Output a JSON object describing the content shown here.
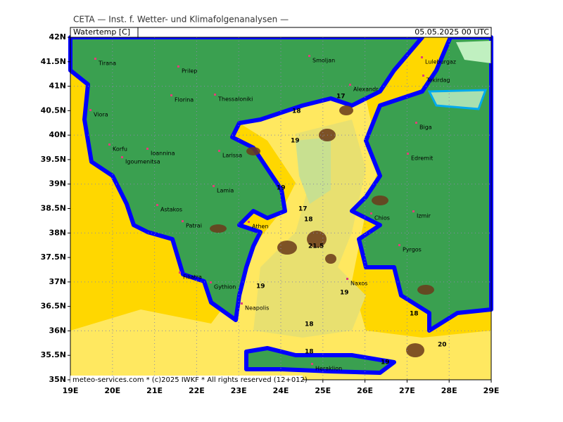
{
  "header": {
    "title": "CETA — Inst. f. Wetter- und Klimafolgenanalysen —",
    "parameter": "Watertemp [C]",
    "datetime": "05.05.2025 00 UTC"
  },
  "footer": "meteo-services.com * (c)2025 IWKF * All rights reserved (12+012)",
  "lon_ticks": [
    "19E",
    "20E",
    "21E",
    "22E",
    "23E",
    "24E",
    "25E",
    "26E",
    "27E",
    "28E",
    "29E"
  ],
  "lat_ticks": [
    "35N",
    "35.5N",
    "36N",
    "36.5N",
    "37N",
    "37.5N",
    "38N",
    "38.5N",
    "39N",
    "39.5N",
    "40N",
    "40.5N",
    "41N",
    "41.5N",
    "42N"
  ],
  "places": [
    "Tirana",
    "Prilep",
    "Smoljan",
    "Luleburgaz",
    "Tekirdag",
    "Florina",
    "Alexandr",
    "Thessaloniki",
    "Viora",
    "Biga",
    "Korfu",
    "Ioannina",
    "Larissa",
    "Igoumenitsa",
    "Edremit",
    "Lamia",
    "Astakos",
    "Izmir",
    "Patrai",
    "Chios",
    "Athen",
    "Pyrgos",
    "Filiatra",
    "Gythion",
    "Naxos",
    "Neapolis",
    "Heraklion"
  ],
  "contour_labels": [
    17,
    18,
    19,
    19,
    17,
    18,
    21.5,
    19,
    19,
    18,
    18,
    19,
    18,
    20
  ]
}
